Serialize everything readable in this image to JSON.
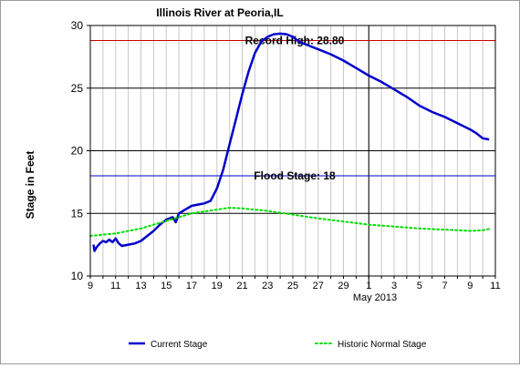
{
  "chart_data": {
    "type": "line",
    "title": "Illinois River at Peoria,IL",
    "ylabel": "Stage in Feet",
    "xlabel": "",
    "month_label": "May 2013",
    "ylim": [
      10,
      30
    ],
    "y_ticks": [
      10,
      15,
      20,
      25,
      30
    ],
    "x_range": [
      "2013-04-09",
      "2013-05-11"
    ],
    "x_tick_labels": [
      {
        "date": "2013-04-09",
        "label": "9"
      },
      {
        "date": "2013-04-11",
        "label": "11"
      },
      {
        "date": "2013-04-13",
        "label": "13"
      },
      {
        "date": "2013-04-15",
        "label": "15"
      },
      {
        "date": "2013-04-17",
        "label": "17"
      },
      {
        "date": "2013-04-19",
        "label": "19"
      },
      {
        "date": "2013-04-21",
        "label": "21"
      },
      {
        "date": "2013-04-23",
        "label": "23"
      },
      {
        "date": "2013-04-25",
        "label": "25"
      },
      {
        "date": "2013-04-27",
        "label": "27"
      },
      {
        "date": "2013-04-29",
        "label": "29"
      },
      {
        "date": "2013-05-01",
        "label": "1"
      },
      {
        "date": "2013-05-03",
        "label": "3"
      },
      {
        "date": "2013-05-05",
        "label": "5"
      },
      {
        "date": "2013-05-07",
        "label": "7"
      },
      {
        "date": "2013-05-09",
        "label": "9"
      },
      {
        "date": "2013-05-11",
        "label": "11"
      }
    ],
    "grid": true,
    "reference_lines": [
      {
        "label": "Record High: 28.80",
        "value": 28.8,
        "color": "#cc0000"
      },
      {
        "label": "Flood Stage: 18",
        "value": 18,
        "color": "#0000cc"
      }
    ],
    "month_divider": "2013-05-01",
    "legend_position": "bottom",
    "series": [
      {
        "name": "Current Stage",
        "color": "#0000cc",
        "style": "solid",
        "points": [
          [
            "2013-04-09 06:00",
            12.5
          ],
          [
            "2013-04-09 08:00",
            12.0
          ],
          [
            "2013-04-09 12:00",
            12.3
          ],
          [
            "2013-04-09 18:00",
            12.6
          ],
          [
            "2013-04-10 00:00",
            12.8
          ],
          [
            "2013-04-10 06:00",
            12.7
          ],
          [
            "2013-04-10 12:00",
            12.9
          ],
          [
            "2013-04-10 18:00",
            12.7
          ],
          [
            "2013-04-11 00:00",
            13.0
          ],
          [
            "2013-04-11 06:00",
            12.6
          ],
          [
            "2013-04-11 12:00",
            12.4
          ],
          [
            "2013-04-12 00:00",
            12.5
          ],
          [
            "2013-04-12 12:00",
            12.6
          ],
          [
            "2013-04-13 00:00",
            12.8
          ],
          [
            "2013-04-13 12:00",
            13.2
          ],
          [
            "2013-04-14 00:00",
            13.6
          ],
          [
            "2013-04-14 12:00",
            14.1
          ],
          [
            "2013-04-15 00:00",
            14.5
          ],
          [
            "2013-04-15 12:00",
            14.7
          ],
          [
            "2013-04-15 18:00",
            14.3
          ],
          [
            "2013-04-16 00:00",
            15.0
          ],
          [
            "2013-04-16 12:00",
            15.3
          ],
          [
            "2013-04-17 00:00",
            15.6
          ],
          [
            "2013-04-17 12:00",
            15.7
          ],
          [
            "2013-04-18 00:00",
            15.8
          ],
          [
            "2013-04-18 12:00",
            16.0
          ],
          [
            "2013-04-19 00:00",
            17.0
          ],
          [
            "2013-04-19 12:00",
            18.5
          ],
          [
            "2013-04-20 00:00",
            20.5
          ],
          [
            "2013-04-20 12:00",
            22.5
          ],
          [
            "2013-04-21 00:00",
            24.5
          ],
          [
            "2013-04-21 12:00",
            26.3
          ],
          [
            "2013-04-22 00:00",
            27.8
          ],
          [
            "2013-04-22 12:00",
            28.7
          ],
          [
            "2013-04-23 00:00",
            29.1
          ],
          [
            "2013-04-23 12:00",
            29.3
          ],
          [
            "2013-04-24 00:00",
            29.35
          ],
          [
            "2013-04-24 12:00",
            29.3
          ],
          [
            "2013-04-25 00:00",
            29.1
          ],
          [
            "2013-04-25 12:00",
            28.7
          ],
          [
            "2013-04-26 00:00",
            28.5
          ],
          [
            "2013-04-26 12:00",
            28.3
          ],
          [
            "2013-04-27 00:00",
            28.1
          ],
          [
            "2013-04-28 00:00",
            27.7
          ],
          [
            "2013-04-29 00:00",
            27.2
          ],
          [
            "2013-04-30 00:00",
            26.6
          ],
          [
            "2013-05-01 00:00",
            26.0
          ],
          [
            "2013-05-02 00:00",
            25.5
          ],
          [
            "2013-05-03 00:00",
            24.9
          ],
          [
            "2013-05-04 00:00",
            24.3
          ],
          [
            "2013-05-05 00:00",
            23.6
          ],
          [
            "2013-05-06 00:00",
            23.1
          ],
          [
            "2013-05-07 00:00",
            22.7
          ],
          [
            "2013-05-08 00:00",
            22.2
          ],
          [
            "2013-05-09 00:00",
            21.7
          ],
          [
            "2013-05-09 12:00",
            21.4
          ],
          [
            "2013-05-10 00:00",
            21.0
          ],
          [
            "2013-05-10 12:00",
            20.9
          ]
        ]
      },
      {
        "name": "Historic Normal Stage",
        "color": "#00dd00",
        "style": "dotted",
        "points": [
          [
            "2013-04-09 00:00",
            13.2
          ],
          [
            "2013-04-11 00:00",
            13.4
          ],
          [
            "2013-04-13 00:00",
            13.8
          ],
          [
            "2013-04-15 00:00",
            14.4
          ],
          [
            "2013-04-17 00:00",
            15.0
          ],
          [
            "2013-04-19 00:00",
            15.3
          ],
          [
            "2013-04-20 00:00",
            15.45
          ],
          [
            "2013-04-21 00:00",
            15.4
          ],
          [
            "2013-04-23 00:00",
            15.2
          ],
          [
            "2013-04-25 00:00",
            14.9
          ],
          [
            "2013-04-27 00:00",
            14.6
          ],
          [
            "2013-04-29 00:00",
            14.35
          ],
          [
            "2013-05-01 00:00",
            14.1
          ],
          [
            "2013-05-03 00:00",
            13.95
          ],
          [
            "2013-05-05 00:00",
            13.8
          ],
          [
            "2013-05-07 00:00",
            13.7
          ],
          [
            "2013-05-09 00:00",
            13.6
          ],
          [
            "2013-05-10 00:00",
            13.65
          ],
          [
            "2013-05-10 12:00",
            13.75
          ]
        ]
      }
    ]
  }
}
